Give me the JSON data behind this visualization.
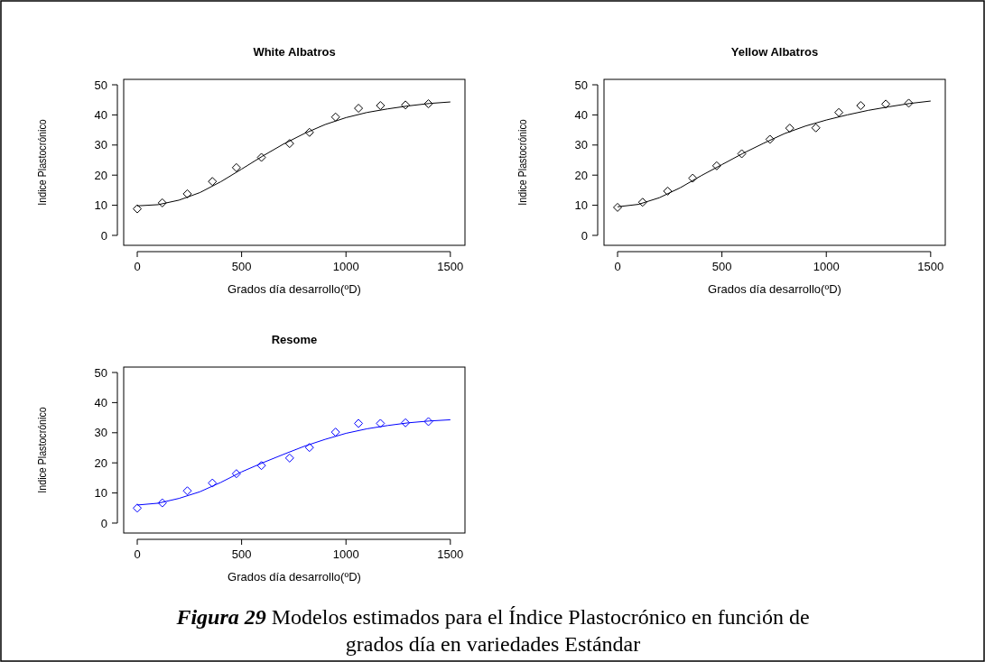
{
  "chart_data": [
    {
      "type": "scatter",
      "title": "White Albatros",
      "xlabel": "Grados día desarrollo(ºD)",
      "ylabel": "Indice Plastocrónico",
      "xlim": [
        -65,
        1570
      ],
      "ylim": [
        -3.3,
        51.8
      ],
      "xticks": [
        0,
        500,
        1000,
        1500
      ],
      "yticks": [
        0,
        10,
        20,
        30,
        40,
        50
      ],
      "grid": false,
      "series": [
        {
          "marker": "diamond",
          "color": "#000000",
          "x": [
            0,
            120,
            240,
            360,
            475,
            595,
            730,
            825,
            950,
            1060,
            1165,
            1285,
            1395
          ],
          "values": [
            8.8,
            10.8,
            13.8,
            17.9,
            22.5,
            25.9,
            30.5,
            34.2,
            39.3,
            42.2,
            43.1,
            43.3,
            43.7
          ]
        },
        {
          "type": "line",
          "color": "#000000",
          "x": [
            0,
            100,
            200,
            300,
            400,
            500,
            600,
            700,
            800,
            900,
            1000,
            1100,
            1200,
            1300,
            1400,
            1500
          ],
          "values": [
            9.8,
            10.2,
            11.7,
            14.2,
            17.8,
            22.0,
            26.3,
            30.3,
            33.8,
            36.8,
            39.1,
            40.8,
            42.0,
            43.0,
            43.8,
            44.3
          ]
        }
      ],
      "annotations": [
        "Figura 29",
        "Modelos estimados  para el Índice  Plastocrónico  en función  de grados día en variedades  Estándar"
      ]
    },
    {
      "type": "scatter",
      "title": "Yellow Albatros",
      "xlabel": "Grados día desarrollo(ºD)",
      "ylabel": "Indice Plastocrónico",
      "xlim": [
        -65,
        1570
      ],
      "ylim": [
        -3.3,
        51.8
      ],
      "xticks": [
        0,
        500,
        1000,
        1500
      ],
      "yticks": [
        0,
        10,
        20,
        30,
        40,
        50
      ],
      "grid": false,
      "series": [
        {
          "marker": "diamond",
          "color": "#000000",
          "x": [
            0,
            120,
            240,
            360,
            475,
            595,
            730,
            825,
            950,
            1060,
            1165,
            1285,
            1395
          ],
          "values": [
            9.3,
            11.0,
            14.7,
            19.0,
            23.1,
            27.1,
            31.9,
            35.6,
            35.7,
            40.8,
            43.1,
            43.6,
            43.9
          ]
        },
        {
          "type": "line",
          "color": "#000000",
          "x": [
            0,
            100,
            200,
            300,
            400,
            500,
            600,
            700,
            800,
            900,
            1000,
            1100,
            1200,
            1300,
            1400,
            1500
          ],
          "values": [
            9.5,
            10.3,
            12.5,
            15.8,
            19.8,
            23.5,
            27.2,
            30.6,
            33.8,
            36.3,
            38.3,
            40.0,
            41.5,
            42.7,
            43.8,
            44.6
          ]
        }
      ]
    },
    {
      "type": "scatter",
      "title": "Resome",
      "xlabel": "Grados día desarrollo(ºD)",
      "ylabel": "Indice Plastocrónico",
      "xlim": [
        -65,
        1570
      ],
      "ylim": [
        -3.3,
        51.8
      ],
      "xticks": [
        0,
        500,
        1000,
        1500
      ],
      "yticks": [
        0,
        10,
        20,
        30,
        40,
        50
      ],
      "grid": false,
      "series": [
        {
          "marker": "diamond",
          "color": "#0000ff",
          "x": [
            0,
            120,
            240,
            360,
            475,
            595,
            730,
            825,
            950,
            1060,
            1165,
            1285,
            1395
          ],
          "values": [
            5.0,
            6.7,
            10.7,
            13.3,
            16.4,
            19.1,
            21.6,
            25.1,
            30.2,
            33.1,
            33.1,
            33.3,
            33.7
          ]
        },
        {
          "type": "line",
          "color": "#0000ff",
          "x": [
            0,
            100,
            200,
            300,
            400,
            500,
            600,
            700,
            800,
            900,
            1000,
            1100,
            1200,
            1300,
            1400,
            1500
          ],
          "values": [
            6.0,
            6.6,
            8.2,
            10.4,
            13.5,
            17.0,
            20.0,
            22.8,
            25.5,
            27.8,
            29.8,
            31.3,
            32.4,
            33.3,
            33.9,
            34.3
          ]
        }
      ]
    }
  ]
}
